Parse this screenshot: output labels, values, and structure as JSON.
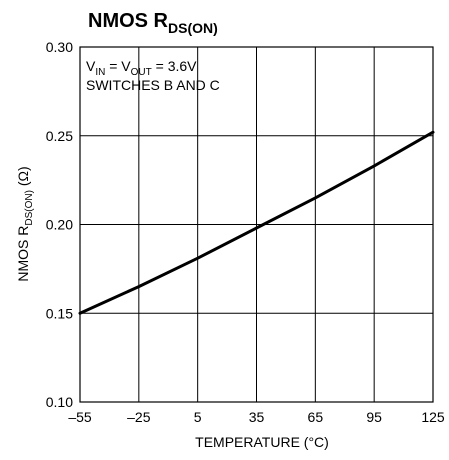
{
  "chart_data": {
    "type": "line",
    "title": {
      "main": "NMOS R",
      "sub": "DS(ON)"
    },
    "xlabel": "TEMPERATURE (°C)",
    "ylabel": {
      "pre": "NMOS R",
      "sub": "DS(ON)",
      "post": " (Ω)"
    },
    "xlim": [
      -55,
      125
    ],
    "ylim": [
      0.1,
      0.3
    ],
    "x_ticks": [
      -55,
      -25,
      5,
      35,
      65,
      95,
      125
    ],
    "x_tick_labels": [
      "–55",
      "–25",
      "5",
      "35",
      "65",
      "95",
      "125"
    ],
    "y_ticks": [
      0.1,
      0.15,
      0.2,
      0.25,
      0.3
    ],
    "y_tick_labels": [
      "0.10",
      "0.15",
      "0.20",
      "0.25",
      "0.30"
    ],
    "grid": true,
    "annotations": {
      "line1": {
        "v1": "V",
        "v1sub": "IN",
        "mid": " = V",
        "v2sub": "OUT",
        "post": " = 3.6V"
      },
      "line2": "SWITCHES B AND C"
    },
    "series": [
      {
        "x": [
          -55,
          -25,
          5,
          35,
          65,
          95,
          125
        ],
        "y": [
          0.15,
          0.165,
          0.181,
          0.198,
          0.215,
          0.233,
          0.252
        ]
      }
    ]
  },
  "colors": {
    "axis": "#000000",
    "grid": "#000000",
    "line": "#000000",
    "background": "#ffffff"
  }
}
